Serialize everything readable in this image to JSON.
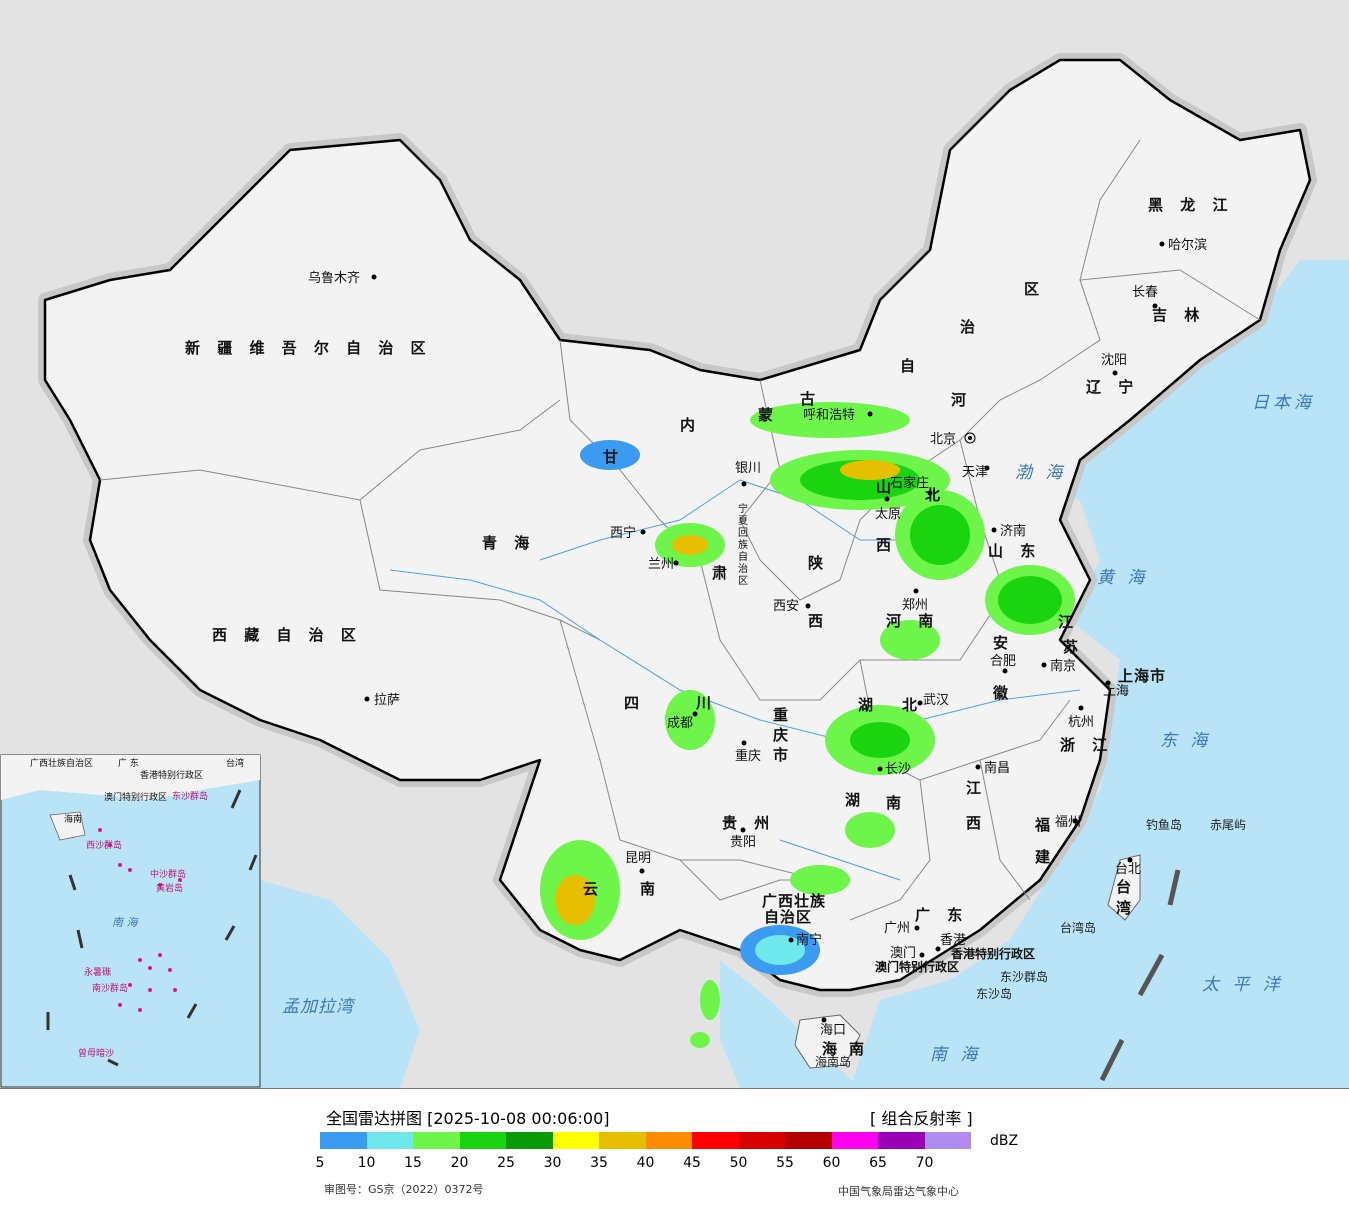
{
  "legend": {
    "title": "全国雷达拼图 [2025-10-08 00:06:00]",
    "product": "[ 组合反射率 ]",
    "unit": "dBZ",
    "ticks": [
      "5",
      "10",
      "15",
      "20",
      "25",
      "30",
      "35",
      "40",
      "45",
      "50",
      "55",
      "60",
      "65",
      "70"
    ],
    "colors": [
      "#3a9bf0",
      "#6ee8ea",
      "#6ef54a",
      "#19d40f",
      "#0a9a04",
      "#ffff00",
      "#e6c000",
      "#ff8c00",
      "#ff0000",
      "#d80000",
      "#b50000",
      "#ff00f0",
      "#9a00b4",
      "#b08cf0"
    ],
    "approval_no": "审图号：GS京（2022）0372号",
    "credit": "中国气象局雷达气象中心"
  },
  "map": {
    "colors": {
      "land": "#f3f3f3",
      "neighbor": "#e3e3e3",
      "sea": "#b9e3f7",
      "border": "#000000"
    },
    "regions": [
      {
        "name": "新 疆 维 吾 尔 自 治 区"
      },
      {
        "name": "西 藏 自 治 区"
      },
      {
        "name": "青 海"
      },
      {
        "name": "甘"
      },
      {
        "name": "肃"
      },
      {
        "name": "四"
      },
      {
        "name": "川"
      },
      {
        "name": "云"
      },
      {
        "name": "南"
      },
      {
        "name": "贵 州"
      },
      {
        "name": "广西壮族"
      },
      {
        "name": "自治区"
      },
      {
        "name": "广 东"
      },
      {
        "name": "海"
      },
      {
        "name": "南"
      },
      {
        "name": "湖"
      },
      {
        "name": "南"
      },
      {
        "name": "湖"
      },
      {
        "name": "北"
      },
      {
        "name": "江"
      },
      {
        "name": "西"
      },
      {
        "name": "福"
      },
      {
        "name": "建"
      },
      {
        "name": "浙 江"
      },
      {
        "name": "安"
      },
      {
        "name": "徽"
      },
      {
        "name": "江"
      },
      {
        "name": "苏"
      },
      {
        "name": "山 东"
      },
      {
        "name": "河 南"
      },
      {
        "name": "陕"
      },
      {
        "name": "西"
      },
      {
        "name": "山"
      },
      {
        "name": "西"
      },
      {
        "name": "河"
      },
      {
        "name": "北"
      },
      {
        "name": "内"
      },
      {
        "name": "蒙"
      },
      {
        "name": "古"
      },
      {
        "name": "自"
      },
      {
        "name": "治"
      },
      {
        "name": "区"
      },
      {
        "name": "辽 宁"
      },
      {
        "name": "吉 林"
      },
      {
        "name": "黑 龙 江"
      },
      {
        "name": "重"
      },
      {
        "name": "庆"
      },
      {
        "name": "市"
      },
      {
        "name": "上海市"
      },
      {
        "name": "宁"
      },
      {
        "name": "夏"
      },
      {
        "name": "回"
      },
      {
        "name": "族"
      },
      {
        "name": "自"
      },
      {
        "name": "治"
      },
      {
        "name": "区"
      },
      {
        "name": "台"
      },
      {
        "name": "湾"
      },
      {
        "name": "香港特别行政区"
      },
      {
        "name": "澳门特别行政区"
      }
    ],
    "cities": [
      {
        "name": "乌鲁木齐"
      },
      {
        "name": "拉萨"
      },
      {
        "name": "西宁"
      },
      {
        "name": "兰州"
      },
      {
        "name": "银川"
      },
      {
        "name": "呼和浩特"
      },
      {
        "name": "北京"
      },
      {
        "name": "天津"
      },
      {
        "name": "石家庄"
      },
      {
        "name": "太原"
      },
      {
        "name": "济南"
      },
      {
        "name": "郑州"
      },
      {
        "name": "西安"
      },
      {
        "name": "合肥"
      },
      {
        "name": "南京"
      },
      {
        "name": "上海"
      },
      {
        "name": "杭州"
      },
      {
        "name": "武汉"
      },
      {
        "name": "成都"
      },
      {
        "name": "重庆"
      },
      {
        "name": "长沙"
      },
      {
        "name": "南昌"
      },
      {
        "name": "福州"
      },
      {
        "name": "贵阳"
      },
      {
        "name": "昆明"
      },
      {
        "name": "南宁"
      },
      {
        "name": "广州"
      },
      {
        "name": "香港"
      },
      {
        "name": "澳门"
      },
      {
        "name": "海口"
      },
      {
        "name": "台北"
      },
      {
        "name": "沈阳"
      },
      {
        "name": "长春"
      },
      {
        "name": "哈尔滨"
      }
    ],
    "seas": [
      {
        "name": "日本海"
      },
      {
        "name": "渤 海"
      },
      {
        "name": "黄 海"
      },
      {
        "name": "东 海"
      },
      {
        "name": "太 平 洋"
      },
      {
        "name": "南 海"
      },
      {
        "name": "孟加拉湾"
      }
    ],
    "islands": [
      {
        "name": "钓鱼岛"
      },
      {
        "name": "赤尾屿"
      },
      {
        "name": "台湾岛"
      },
      {
        "name": "东沙群岛"
      },
      {
        "name": "东沙岛"
      },
      {
        "name": "海南岛"
      }
    ],
    "inset_labels": [
      {
        "name": "广西壮族自治区"
      },
      {
        "name": "广 东"
      },
      {
        "name": "香港特别行政区"
      },
      {
        "name": "澳门特别行政区"
      },
      {
        "name": "台湾"
      },
      {
        "name": "东沙群岛"
      },
      {
        "name": "海南"
      },
      {
        "name": "西沙群岛"
      },
      {
        "name": "中沙群岛"
      },
      {
        "name": "黄岩岛"
      },
      {
        "name": "南 海"
      },
      {
        "name": "南沙群岛"
      },
      {
        "name": "永暑礁"
      },
      {
        "name": "曾母暗沙"
      }
    ]
  }
}
